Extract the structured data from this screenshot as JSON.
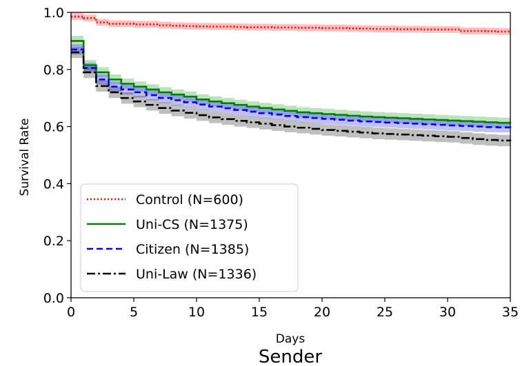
{
  "chart_data": {
    "type": "line",
    "title": "",
    "caption": "Sender",
    "xlabel": "Days",
    "ylabel": "Survival Rate",
    "xlim": [
      0,
      35
    ],
    "ylim": [
      0,
      1.0
    ],
    "xticks": [
      "0",
      "5",
      "10",
      "15",
      "20",
      "25",
      "30",
      "35"
    ],
    "yticks": [
      "0.0",
      "0.2",
      "0.4",
      "0.6",
      "0.8",
      "1.0"
    ],
    "grid": false,
    "legend_position": "lower-left",
    "confidence_bands": true,
    "x": [
      0,
      1,
      2,
      3,
      4,
      5,
      6,
      7,
      8,
      9,
      10,
      11,
      12,
      13,
      14,
      15,
      16,
      17,
      18,
      19,
      20,
      21,
      22,
      23,
      24,
      25,
      26,
      27,
      28,
      29,
      30,
      31,
      32,
      33,
      34,
      35
    ],
    "series": [
      {
        "name": "Control (N=600)",
        "color": "#ff0000",
        "style": "dotted",
        "values": [
          0.985,
          0.98,
          0.965,
          0.96,
          0.96,
          0.958,
          0.958,
          0.955,
          0.953,
          0.952,
          0.951,
          0.95,
          0.95,
          0.949,
          0.948,
          0.948,
          0.947,
          0.947,
          0.946,
          0.946,
          0.945,
          0.945,
          0.944,
          0.943,
          0.942,
          0.942,
          0.941,
          0.941,
          0.94,
          0.94,
          0.94,
          0.935,
          0.935,
          0.934,
          0.933,
          0.933
        ]
      },
      {
        "name": "Uni-CS (N=1375)",
        "color": "#008000",
        "style": "solid",
        "values": [
          0.9,
          0.815,
          0.79,
          0.765,
          0.75,
          0.74,
          0.73,
          0.72,
          0.712,
          0.705,
          0.695,
          0.688,
          0.682,
          0.676,
          0.67,
          0.665,
          0.66,
          0.655,
          0.65,
          0.647,
          0.644,
          0.641,
          0.638,
          0.635,
          0.633,
          0.631,
          0.629,
          0.627,
          0.625,
          0.623,
          0.621,
          0.619,
          0.617,
          0.615,
          0.613,
          0.612
        ]
      },
      {
        "name": "Citizen (N=1385)",
        "color": "#0000ff",
        "style": "dashed",
        "values": [
          0.87,
          0.805,
          0.765,
          0.74,
          0.73,
          0.72,
          0.71,
          0.7,
          0.692,
          0.685,
          0.677,
          0.67,
          0.664,
          0.658,
          0.652,
          0.647,
          0.642,
          0.637,
          0.633,
          0.63,
          0.627,
          0.624,
          0.621,
          0.618,
          0.616,
          0.614,
          0.612,
          0.61,
          0.608,
          0.606,
          0.604,
          0.602,
          0.6,
          0.598,
          0.597,
          0.596
        ]
      },
      {
        "name": "Uni-Law (N=1336)",
        "color": "#000000",
        "style": "dashdot",
        "values": [
          0.86,
          0.79,
          0.742,
          0.72,
          0.7,
          0.688,
          0.676,
          0.665,
          0.656,
          0.648,
          0.64,
          0.632,
          0.626,
          0.62,
          0.615,
          0.61,
          0.605,
          0.6,
          0.596,
          0.592,
          0.588,
          0.585,
          0.582,
          0.579,
          0.576,
          0.574,
          0.572,
          0.57,
          0.568,
          0.566,
          0.564,
          0.56,
          0.556,
          0.553,
          0.551,
          0.55
        ]
      }
    ]
  }
}
